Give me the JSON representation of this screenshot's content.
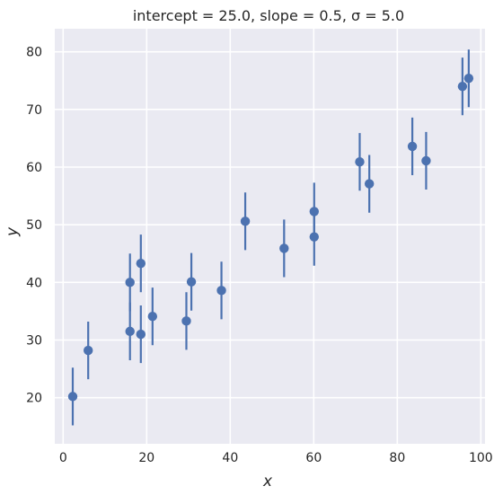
{
  "chart_data": {
    "type": "scatter",
    "title": "intercept = 25.0, slope = 0.5,  σ = 5.0",
    "xlabel": "x",
    "ylabel": "y",
    "xlim": [
      -2,
      101
    ],
    "ylim": [
      12,
      84
    ],
    "xticks": [
      0,
      20,
      40,
      60,
      80,
      100
    ],
    "yticks": [
      20,
      30,
      40,
      50,
      60,
      70,
      80
    ],
    "xtick_labels": [
      "0",
      "20",
      "40",
      "60",
      "80",
      "100"
    ],
    "ytick_labels": [
      "20",
      "30",
      "40",
      "50",
      "60",
      "70",
      "80"
    ],
    "grid": true,
    "background": "#eaeaf2",
    "marker_color": "#4c72b0",
    "error": 5.0,
    "points": [
      {
        "x": 2.3,
        "y": 20.2
      },
      {
        "x": 6.0,
        "y": 28.2
      },
      {
        "x": 16.0,
        "y": 40.0
      },
      {
        "x": 16.0,
        "y": 31.5
      },
      {
        "x": 18.6,
        "y": 43.3
      },
      {
        "x": 18.6,
        "y": 31.0
      },
      {
        "x": 21.4,
        "y": 34.1
      },
      {
        "x": 29.5,
        "y": 33.3
      },
      {
        "x": 30.7,
        "y": 40.1
      },
      {
        "x": 37.9,
        "y": 38.6
      },
      {
        "x": 43.6,
        "y": 50.6
      },
      {
        "x": 52.9,
        "y": 45.9
      },
      {
        "x": 60.1,
        "y": 52.3
      },
      {
        "x": 60.1,
        "y": 47.9
      },
      {
        "x": 71.0,
        "y": 60.9
      },
      {
        "x": 73.3,
        "y": 57.1
      },
      {
        "x": 83.6,
        "y": 63.6
      },
      {
        "x": 86.9,
        "y": 61.1
      },
      {
        "x": 95.6,
        "y": 74.0
      },
      {
        "x": 97.1,
        "y": 75.4
      }
    ]
  }
}
